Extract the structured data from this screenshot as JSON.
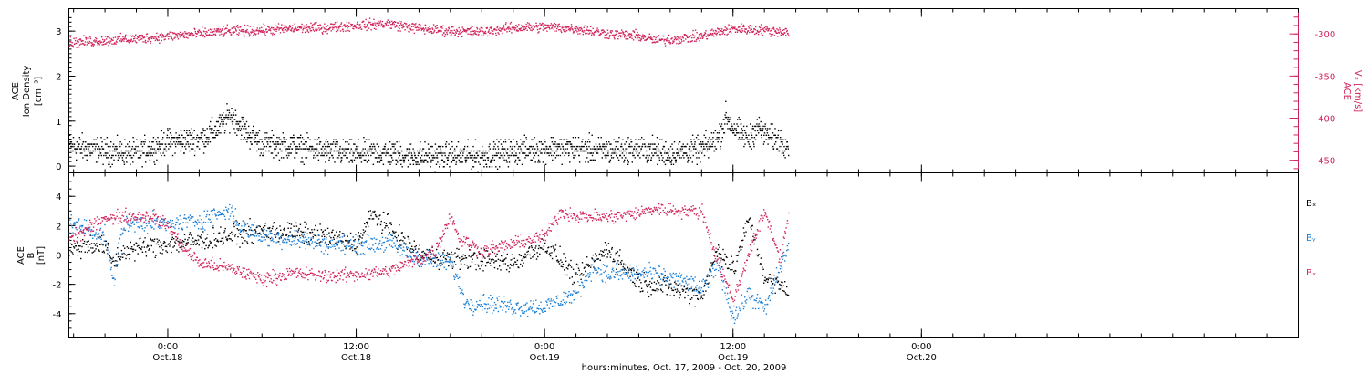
{
  "colors": {
    "density": "#000000",
    "vx": "#d0245a",
    "bx": "#000000",
    "by": "#1a7fd6",
    "bz": "#d0245a",
    "frame": "#000000"
  },
  "xaxis": {
    "title": "hours:minutes, Oct. 17, 2009 - Oct. 20, 2009",
    "range_hours": [
      -6.3,
      72
    ],
    "major_ticks": [
      {
        "hour": 0,
        "time": "0:00",
        "date": "Oct.18"
      },
      {
        "hour": 12,
        "time": "12:00",
        "date": "Oct.18"
      },
      {
        "hour": 24,
        "time": "0:00",
        "date": "Oct.19"
      },
      {
        "hour": 36,
        "time": "12:00",
        "date": "Oct.19"
      },
      {
        "hour": 48,
        "time": "0:00",
        "date": "Oct.20"
      }
    ],
    "minor_tick_step_hours": 2
  },
  "chart_data": [
    {
      "type": "scatter",
      "panel": "top",
      "ylabel_left": [
        "ACE",
        "Ion Density",
        "[cm⁻³]"
      ],
      "ylabel_right": [
        "ACE",
        "Vₓ [km/s]"
      ],
      "ylim_left": [
        -0.15,
        3.5
      ],
      "ylim_right": [
        -465,
        -270
      ],
      "yticks_left": [
        0,
        1,
        2,
        3
      ],
      "yticks_right": [
        -450,
        -400,
        -350,
        -300
      ],
      "grid": false,
      "series": [
        {
          "key": "density",
          "axis": "left",
          "color": "#000000",
          "x_start_hour": -6.3,
          "x_end_hour": 39.5,
          "baseline": [
            [
              -6.3,
              0.45
            ],
            [
              -4,
              0.35
            ],
            [
              -2,
              0.3
            ],
            [
              0,
              0.55
            ],
            [
              2,
              0.6
            ],
            [
              3,
              0.8
            ],
            [
              4,
              1.15
            ],
            [
              5,
              0.75
            ],
            [
              6,
              0.5
            ],
            [
              8,
              0.45
            ],
            [
              10,
              0.35
            ],
            [
              12,
              0.3
            ],
            [
              14,
              0.3
            ],
            [
              16,
              0.25
            ],
            [
              18,
              0.25
            ],
            [
              20,
              0.25
            ],
            [
              22,
              0.35
            ],
            [
              24,
              0.4
            ],
            [
              26,
              0.4
            ],
            [
              28,
              0.35
            ],
            [
              30,
              0.4
            ],
            [
              32,
              0.3
            ],
            [
              34,
              0.4
            ],
            [
              35,
              0.6
            ],
            [
              35.5,
              1.1
            ],
            [
              36,
              0.85
            ],
            [
              37,
              0.6
            ],
            [
              37.5,
              0.9
            ],
            [
              38,
              0.7
            ],
            [
              39.5,
              0.5
            ]
          ],
          "spread": 0.28
        },
        {
          "key": "vx",
          "axis": "right",
          "color": "#d0245a",
          "x_start_hour": -6.3,
          "x_end_hour": 39.5,
          "baseline": [
            [
              -6.3,
              -310
            ],
            [
              -4,
              -307
            ],
            [
              -2,
              -305
            ],
            [
              0,
              -302
            ],
            [
              2,
              -299
            ],
            [
              4,
              -296
            ],
            [
              6,
              -295
            ],
            [
              8,
              -293
            ],
            [
              10,
              -292
            ],
            [
              12,
              -289
            ],
            [
              14,
              -287
            ],
            [
              16,
              -293
            ],
            [
              18,
              -296
            ],
            [
              20,
              -297
            ],
            [
              22,
              -292
            ],
            [
              24,
              -291
            ],
            [
              26,
              -293
            ],
            [
              28,
              -299
            ],
            [
              30,
              -302
            ],
            [
              31,
              -307
            ],
            [
              32,
              -306
            ],
            [
              34,
              -302
            ],
            [
              35,
              -297
            ],
            [
              36,
              -293
            ],
            [
              38,
              -295
            ],
            [
              39.5,
              -297
            ]
          ],
          "spread": 6
        }
      ]
    },
    {
      "type": "scatter",
      "panel": "bottom",
      "ylabel_left": [
        "ACE",
        "B",
        "[nT]"
      ],
      "ylim": [
        -5.6,
        5.6
      ],
      "yticks": [
        -4,
        -2,
        0,
        2,
        4
      ],
      "zero_line": true,
      "grid": false,
      "legend": [
        "Bₓ",
        "Bᵧ",
        "Bₓ"
      ],
      "legend_placement": "right",
      "series": [
        {
          "key": "bx",
          "name": "Bₓ",
          "color": "#000000",
          "x_start_hour": -6.3,
          "x_end_hour": 39.5,
          "baseline": [
            [
              -6.3,
              0.3
            ],
            [
              -5,
              0.8
            ],
            [
              -4,
              0.6
            ],
            [
              -3.5,
              -0.5
            ],
            [
              -3,
              0.2
            ],
            [
              -2,
              0.5
            ],
            [
              0,
              0.8
            ],
            [
              2,
              1
            ],
            [
              4,
              1.4
            ],
            [
              6,
              1.7
            ],
            [
              8,
              1.6
            ],
            [
              10,
              1.3
            ],
            [
              12,
              0.8
            ],
            [
              13,
              2.8
            ],
            [
              14,
              2
            ],
            [
              15,
              1
            ],
            [
              16,
              0.1
            ],
            [
              18,
              -0.2
            ],
            [
              20,
              -0.3
            ],
            [
              22,
              -0.5
            ],
            [
              24,
              0.8
            ],
            [
              26,
              -1.5
            ],
            [
              28,
              0.5
            ],
            [
              30,
              -1.8
            ],
            [
              32,
              -2.2
            ],
            [
              34,
              -2.7
            ],
            [
              35,
              0.5
            ],
            [
              36,
              -1
            ],
            [
              37,
              2.5
            ],
            [
              38,
              -1.5
            ],
            [
              39.5,
              -2.4
            ]
          ],
          "spread": 0.7
        },
        {
          "key": "by",
          "name": "Bᵧ",
          "color": "#1a7fd6",
          "x_start_hour": -6.3,
          "x_end_hour": 39.5,
          "baseline": [
            [
              -6.3,
              2.2
            ],
            [
              -5,
              1.8
            ],
            [
              -4,
              1.2
            ],
            [
              -3.5,
              -2
            ],
            [
              -3,
              1.8
            ],
            [
              -2,
              2.3
            ],
            [
              0,
              2.1
            ],
            [
              2,
              2.4
            ],
            [
              4,
              3.1
            ],
            [
              4.5,
              2
            ],
            [
              6,
              1.3
            ],
            [
              8,
              1.1
            ],
            [
              10,
              0.8
            ],
            [
              12,
              0.7
            ],
            [
              14,
              0.9
            ],
            [
              16,
              -0.2
            ],
            [
              18,
              -0.5
            ],
            [
              19,
              -3.3
            ],
            [
              20,
              -3.2
            ],
            [
              22,
              -3.5
            ],
            [
              24,
              -3.5
            ],
            [
              26,
              -2.6
            ],
            [
              27,
              -0.8
            ],
            [
              28,
              -1.3
            ],
            [
              30,
              -1.2
            ],
            [
              31,
              -1.3
            ],
            [
              32,
              -1.5
            ],
            [
              33,
              -1.8
            ],
            [
              34,
              -2.3
            ],
            [
              35,
              -0.5
            ],
            [
              36,
              -4.3
            ],
            [
              37,
              -2.6
            ],
            [
              38,
              -3.7
            ],
            [
              39.5,
              0.7
            ]
          ],
          "spread": 0.6
        },
        {
          "key": "bz",
          "name": "Bₓ",
          "color": "#d0245a",
          "x_start_hour": -6.3,
          "x_end_hour": 39.5,
          "baseline": [
            [
              -6.3,
              1.1
            ],
            [
              -4.5,
              2.2
            ],
            [
              -4,
              2.7
            ],
            [
              -3.5,
              2.5
            ],
            [
              -3,
              2.7
            ],
            [
              -2,
              2.7
            ],
            [
              -1,
              2.7
            ],
            [
              0,
              2
            ],
            [
              1,
              0.5
            ],
            [
              2,
              -0.5
            ],
            [
              4,
              -0.9
            ],
            [
              6,
              -1.6
            ],
            [
              8,
              -1.2
            ],
            [
              10,
              -1.4
            ],
            [
              12,
              -1.3
            ],
            [
              14,
              -1.1
            ],
            [
              16,
              -0.2
            ],
            [
              17,
              0.3
            ],
            [
              18,
              2.8
            ],
            [
              18.5,
              1.2
            ],
            [
              20,
              0.3
            ],
            [
              22,
              0.8
            ],
            [
              24,
              1.3
            ],
            [
              25,
              3
            ],
            [
              26,
              2.7
            ],
            [
              28,
              2.6
            ],
            [
              30,
              2.9
            ],
            [
              31,
              3.2
            ],
            [
              32,
              3.1
            ],
            [
              34,
              3
            ],
            [
              35,
              -0.4
            ],
            [
              36,
              -3.1
            ],
            [
              37,
              0.3
            ],
            [
              38,
              3
            ],
            [
              39,
              -0.3
            ],
            [
              39.5,
              2.9
            ]
          ],
          "spread": 0.45
        }
      ]
    }
  ]
}
